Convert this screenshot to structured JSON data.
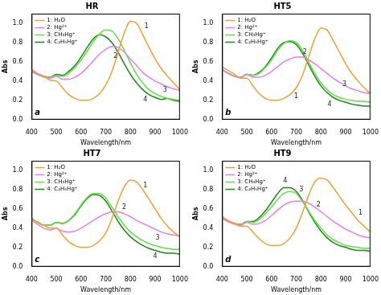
{
  "chart_data": [
    {
      "type": "line",
      "title": "HR",
      "panel": "a",
      "x_label": "Wavelength/nm",
      "y_label": "Abs",
      "xlim": [
        400,
        1000
      ],
      "xticks": [
        400,
        500,
        600,
        700,
        800,
        900,
        1000
      ],
      "ylim": [
        0,
        1.1
      ],
      "yticks": [
        {
          "value": 0,
          "label": "0.0"
        },
        {
          "value": 0.2,
          "label": "0.2"
        },
        {
          "value": 0.4,
          "label": "0.4"
        },
        {
          "value": 0.6,
          "label": "0.6"
        },
        {
          "value": 0.8,
          "label": "0.8"
        },
        {
          "value": 1,
          "label": "1.0"
        }
      ],
      "grid": false,
      "legend": "upper left",
      "x": [
        400,
        425,
        450,
        475,
        500,
        525,
        550,
        575,
        600,
        625,
        650,
        675,
        700,
        725,
        750,
        775,
        800,
        825,
        850,
        875,
        900,
        925,
        950,
        975,
        1000
      ],
      "series": [
        {
          "name": "1: H₂O",
          "color": "#f0a030",
          "values": [
            0.52,
            0.48,
            0.45,
            0.41,
            0.4,
            0.33,
            0.26,
            0.22,
            0.2,
            0.2,
            0.22,
            0.27,
            0.36,
            0.5,
            0.7,
            0.9,
            1.02,
            1.0,
            0.88,
            0.75,
            0.63,
            0.53,
            0.45,
            0.38,
            0.31
          ]
        },
        {
          "name": "2: Hg²⁺",
          "color": "#e87ee8",
          "values": [
            0.5,
            0.47,
            0.44,
            0.43,
            0.45,
            0.42,
            0.42,
            0.44,
            0.48,
            0.54,
            0.61,
            0.68,
            0.73,
            0.76,
            0.75,
            0.7,
            0.63,
            0.56,
            0.49,
            0.44,
            0.4,
            0.37,
            0.34,
            0.32,
            0.3
          ]
        },
        {
          "name": "3: CH₃Hg⁺",
          "color": "#66dd44",
          "values": [
            0.5,
            0.47,
            0.45,
            0.44,
            0.46,
            0.45,
            0.48,
            0.54,
            0.62,
            0.71,
            0.81,
            0.89,
            0.93,
            0.92,
            0.84,
            0.72,
            0.59,
            0.47,
            0.38,
            0.31,
            0.27,
            0.24,
            0.22,
            0.21,
            0.2
          ]
        },
        {
          "name": "4: C₂H₅Hg⁺",
          "color": "#1a8a1a",
          "values": [
            0.5,
            0.47,
            0.45,
            0.44,
            0.47,
            0.46,
            0.5,
            0.56,
            0.65,
            0.75,
            0.84,
            0.88,
            0.86,
            0.8,
            0.7,
            0.58,
            0.47,
            0.38,
            0.31,
            0.26,
            0.23,
            0.21,
            0.22,
            0.2,
            0.19
          ]
        }
      ],
      "annotations": [
        {
          "text": "1",
          "x": 865,
          "y": 0.97
        },
        {
          "text": "2",
          "x": 740,
          "y": 0.66
        },
        {
          "text": "3",
          "x": 940,
          "y": 0.31
        },
        {
          "text": "4",
          "x": 860,
          "y": 0.21
        }
      ]
    },
    {
      "type": "line",
      "title": "HT5",
      "panel": "b",
      "x_label": "Wavelength/nm",
      "y_label": "Abs",
      "xlim": [
        400,
        1000
      ],
      "xticks": [
        400,
        500,
        600,
        700,
        800,
        900,
        1000
      ],
      "ylim": [
        0,
        1.1
      ],
      "yticks": [
        {
          "value": 0,
          "label": "0.0"
        },
        {
          "value": 0.2,
          "label": "0.2"
        },
        {
          "value": 0.4,
          "label": "0.4"
        },
        {
          "value": 0.6,
          "label": "0.6"
        },
        {
          "value": 0.8,
          "label": "0.8"
        },
        {
          "value": 1,
          "label": "1.0"
        }
      ],
      "grid": false,
      "legend": "upper left",
      "x": [
        400,
        425,
        450,
        475,
        500,
        525,
        550,
        575,
        600,
        625,
        650,
        675,
        700,
        725,
        750,
        775,
        800,
        825,
        850,
        875,
        900,
        925,
        950,
        975,
        1000
      ],
      "series": [
        {
          "name": "1: H₂O",
          "color": "#f0a030",
          "values": [
            0.55,
            0.51,
            0.47,
            0.43,
            0.43,
            0.35,
            0.27,
            0.22,
            0.2,
            0.2,
            0.22,
            0.26,
            0.33,
            0.46,
            0.65,
            0.84,
            0.95,
            0.93,
            0.82,
            0.7,
            0.58,
            0.48,
            0.4,
            0.33,
            0.27
          ]
        },
        {
          "name": "2: Hg²⁺",
          "color": "#e87ee8",
          "values": [
            0.52,
            0.48,
            0.45,
            0.44,
            0.47,
            0.44,
            0.44,
            0.46,
            0.5,
            0.55,
            0.6,
            0.63,
            0.65,
            0.65,
            0.62,
            0.58,
            0.53,
            0.48,
            0.43,
            0.39,
            0.35,
            0.32,
            0.3,
            0.28,
            0.27
          ]
        },
        {
          "name": "3: CH₃Hg⁺",
          "color": "#66dd44",
          "values": [
            0.52,
            0.48,
            0.45,
            0.44,
            0.47,
            0.46,
            0.48,
            0.54,
            0.62,
            0.72,
            0.79,
            0.82,
            0.8,
            0.72,
            0.6,
            0.48,
            0.38,
            0.31,
            0.26,
            0.23,
            0.21,
            0.2,
            0.19,
            0.19,
            0.18
          ]
        },
        {
          "name": "4: C₂H₅Hg⁺",
          "color": "#1a8a1a",
          "values": [
            0.52,
            0.48,
            0.45,
            0.44,
            0.47,
            0.46,
            0.49,
            0.55,
            0.64,
            0.74,
            0.8,
            0.81,
            0.78,
            0.69,
            0.57,
            0.45,
            0.35,
            0.28,
            0.23,
            0.2,
            0.18,
            0.16,
            0.15,
            0.14,
            0.14
          ]
        }
      ],
      "annotations": [
        {
          "text": "1",
          "x": 700,
          "y": 0.24
        },
        {
          "text": "2",
          "x": 735,
          "y": 0.7
        },
        {
          "text": "3",
          "x": 895,
          "y": 0.37
        },
        {
          "text": "4",
          "x": 835,
          "y": 0.16
        }
      ]
    },
    {
      "type": "line",
      "title": "HT7",
      "panel": "c",
      "x_label": "Wavelength/nm",
      "y_label": "Abs",
      "xlim": [
        400,
        1000
      ],
      "xticks": [
        400,
        500,
        600,
        700,
        800,
        900,
        1000
      ],
      "ylim": [
        0,
        1.1
      ],
      "yticks": [
        {
          "value": 0,
          "label": "0.0"
        },
        {
          "value": 0.2,
          "label": "0.2"
        },
        {
          "value": 0.4,
          "label": "0.4"
        },
        {
          "value": 0.6,
          "label": "0.6"
        },
        {
          "value": 0.8,
          "label": "0.8"
        },
        {
          "value": 1,
          "label": "1.0"
        }
      ],
      "grid": false,
      "legend": "upper left",
      "x": [
        400,
        425,
        450,
        475,
        500,
        525,
        550,
        575,
        600,
        625,
        650,
        675,
        700,
        725,
        750,
        775,
        800,
        825,
        850,
        875,
        900,
        925,
        950,
        975,
        1000
      ],
      "series": [
        {
          "name": "1: H₂O",
          "color": "#f0a030",
          "values": [
            0.5,
            0.46,
            0.43,
            0.4,
            0.4,
            0.33,
            0.26,
            0.22,
            0.2,
            0.2,
            0.22,
            0.27,
            0.35,
            0.5,
            0.68,
            0.83,
            0.9,
            0.88,
            0.8,
            0.7,
            0.6,
            0.5,
            0.42,
            0.36,
            0.31
          ]
        },
        {
          "name": "2: Hg²⁺",
          "color": "#e87ee8",
          "values": [
            0.48,
            0.44,
            0.4,
            0.38,
            0.4,
            0.37,
            0.36,
            0.37,
            0.4,
            0.44,
            0.48,
            0.52,
            0.55,
            0.57,
            0.57,
            0.55,
            0.52,
            0.48,
            0.45,
            0.42,
            0.39,
            0.36,
            0.34,
            0.33,
            0.32
          ]
        },
        {
          "name": "3: CH₃Hg⁺",
          "color": "#66dd44",
          "values": [
            0.5,
            0.46,
            0.43,
            0.43,
            0.46,
            0.45,
            0.48,
            0.55,
            0.64,
            0.72,
            0.76,
            0.76,
            0.71,
            0.62,
            0.52,
            0.43,
            0.36,
            0.31,
            0.27,
            0.24,
            0.22,
            0.2,
            0.19,
            0.18,
            0.18
          ]
        },
        {
          "name": "4: C₂H₅Hg⁺",
          "color": "#1a8a1a",
          "values": [
            0.5,
            0.46,
            0.43,
            0.43,
            0.46,
            0.45,
            0.48,
            0.54,
            0.63,
            0.71,
            0.75,
            0.74,
            0.68,
            0.58,
            0.47,
            0.38,
            0.31,
            0.26,
            0.22,
            0.19,
            0.17,
            0.15,
            0.14,
            0.14,
            0.13
          ]
        }
      ],
      "annotations": [
        {
          "text": "1",
          "x": 860,
          "y": 0.84
        },
        {
          "text": "2",
          "x": 775,
          "y": 0.62
        },
        {
          "text": "3",
          "x": 910,
          "y": 0.3
        },
        {
          "text": "4",
          "x": 900,
          "y": 0.11
        }
      ]
    },
    {
      "type": "line",
      "title": "HT9",
      "panel": "d",
      "x_label": "Wavelength/nm",
      "y_label": "Abs",
      "xlim": [
        400,
        1000
      ],
      "xticks": [
        400,
        500,
        600,
        700,
        800,
        900,
        1000
      ],
      "ylim": [
        0,
        1.1
      ],
      "yticks": [
        {
          "value": 0,
          "label": "0.0"
        },
        {
          "value": 0.2,
          "label": "0.2"
        },
        {
          "value": 0.4,
          "label": "0.4"
        },
        {
          "value": 0.6,
          "label": "0.6"
        },
        {
          "value": 0.8,
          "label": "0.8"
        },
        {
          "value": 1,
          "label": "1.0"
        }
      ],
      "grid": false,
      "legend": "upper left",
      "x": [
        400,
        425,
        450,
        475,
        500,
        525,
        550,
        575,
        600,
        625,
        650,
        675,
        700,
        725,
        750,
        775,
        800,
        825,
        850,
        875,
        900,
        925,
        950,
        975,
        1000
      ],
      "series": [
        {
          "name": "1: H₂O",
          "color": "#f0a030",
          "values": [
            0.52,
            0.48,
            0.45,
            0.42,
            0.42,
            0.36,
            0.29,
            0.24,
            0.22,
            0.22,
            0.24,
            0.3,
            0.4,
            0.56,
            0.74,
            0.88,
            0.92,
            0.9,
            0.82,
            0.73,
            0.64,
            0.56,
            0.48,
            0.42,
            0.36
          ]
        },
        {
          "name": "2: Hg²⁺",
          "color": "#e87ee8",
          "values": [
            0.5,
            0.47,
            0.44,
            0.43,
            0.46,
            0.44,
            0.45,
            0.48,
            0.53,
            0.59,
            0.64,
            0.67,
            0.68,
            0.68,
            0.66,
            0.62,
            0.57,
            0.52,
            0.47,
            0.43,
            0.39,
            0.36,
            0.33,
            0.31,
            0.3
          ]
        },
        {
          "name": "3: CH₃Hg⁺",
          "color": "#66dd44",
          "values": [
            0.5,
            0.47,
            0.45,
            0.44,
            0.47,
            0.46,
            0.49,
            0.55,
            0.62,
            0.7,
            0.76,
            0.78,
            0.76,
            0.68,
            0.58,
            0.48,
            0.4,
            0.33,
            0.28,
            0.25,
            0.22,
            0.21,
            0.2,
            0.19,
            0.19
          ]
        },
        {
          "name": "4: C₂H₅Hg⁺",
          "color": "#1a8a1a",
          "values": [
            0.5,
            0.47,
            0.45,
            0.44,
            0.47,
            0.47,
            0.51,
            0.58,
            0.67,
            0.76,
            0.82,
            0.82,
            0.78,
            0.69,
            0.57,
            0.46,
            0.37,
            0.3,
            0.25,
            0.22,
            0.2,
            0.18,
            0.17,
            0.17,
            0.16
          ]
        }
      ],
      "annotations": [
        {
          "text": "4",
          "x": 655,
          "y": 0.89
        },
        {
          "text": "3",
          "x": 720,
          "y": 0.8
        },
        {
          "text": "2",
          "x": 790,
          "y": 0.64
        },
        {
          "text": "1",
          "x": 960,
          "y": 0.56
        }
      ]
    }
  ]
}
